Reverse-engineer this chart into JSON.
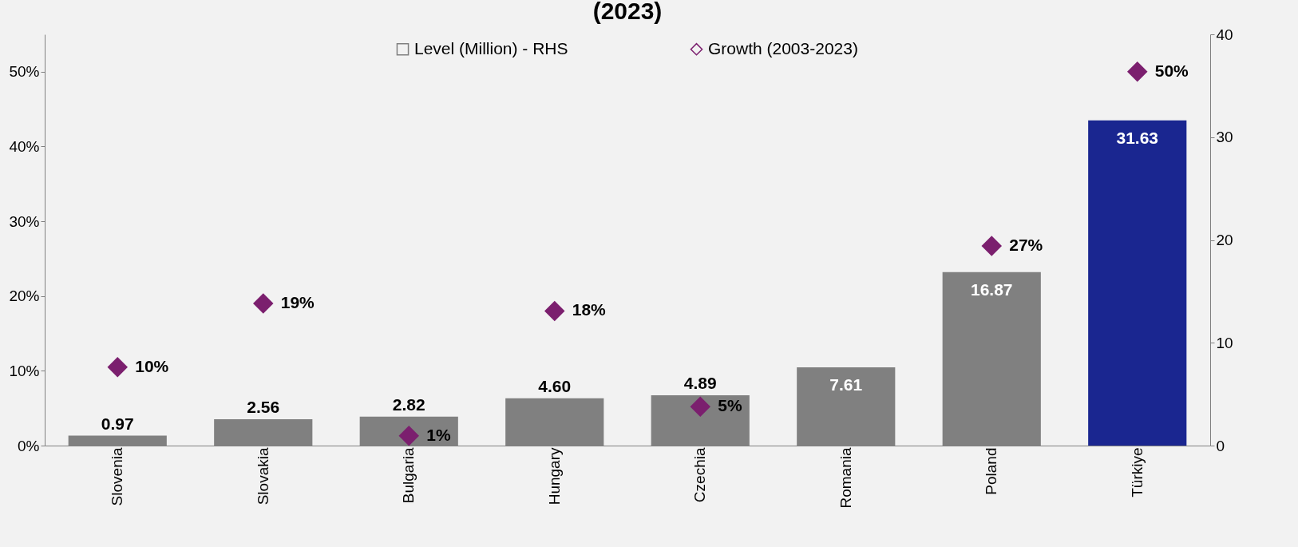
{
  "chart_data": {
    "type": "bar",
    "title": "(2023)",
    "categories": [
      "Slovenia",
      "Slovakia",
      "Bulgaria",
      "Hungary",
      "Czechia",
      "Romania",
      "Poland",
      "Türkiye"
    ],
    "series": [
      {
        "name": "Level (Million) - RHS",
        "type": "bar",
        "axis": "y2",
        "color": "#808080",
        "colors": [
          "#808080",
          "#808080",
          "#808080",
          "#808080",
          "#808080",
          "#808080",
          "#808080",
          "#1a2690"
        ],
        "values": [
          0.97,
          2.56,
          2.82,
          4.6,
          4.89,
          7.61,
          16.87,
          31.63
        ],
        "value_labels": [
          "0.97",
          "2.56",
          "2.82",
          "4.60",
          "4.89",
          "7.61",
          "16.87",
          "31.63"
        ]
      },
      {
        "name": "Growth (2003-2023)",
        "type": "scatter",
        "axis": "y",
        "color": "#7b1f6e",
        "marker": "diamond",
        "values": [
          10.5,
          19.0,
          1.3,
          18.0,
          5.2,
          null,
          26.7,
          50.0
        ],
        "value_labels": [
          "10%",
          "19%",
          "1%",
          "18%",
          "5%",
          null,
          "27%",
          "50%"
        ]
      }
    ],
    "ylim": [
      0,
      55
    ],
    "yticks": [
      {
        "value": 0,
        "label": "0%"
      },
      {
        "value": 10,
        "label": "10%"
      },
      {
        "value": 20,
        "label": "20%"
      },
      {
        "value": 30,
        "label": "30%"
      },
      {
        "value": 40,
        "label": "40%"
      },
      {
        "value": 50,
        "label": "50%"
      }
    ],
    "y2lim": [
      0,
      40
    ],
    "y2ticks": [
      0,
      10,
      20,
      30,
      40
    ],
    "grid": false,
    "legend": "top"
  }
}
